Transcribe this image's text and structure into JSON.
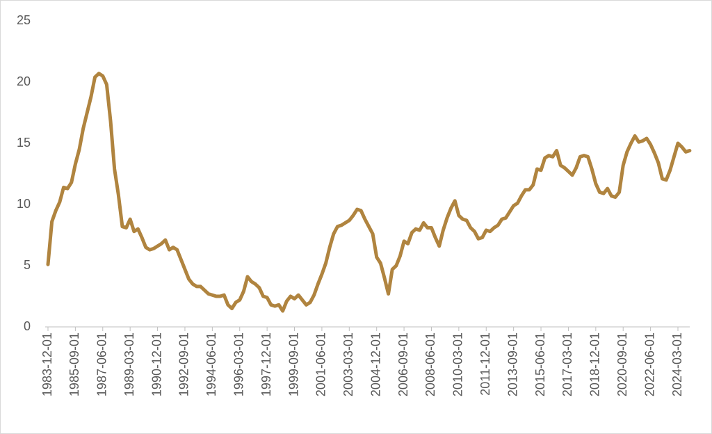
{
  "chart_data": {
    "type": "line",
    "categories": [
      "1983-12-01",
      null,
      null,
      null,
      null,
      null,
      null,
      "1985-09-01",
      null,
      null,
      null,
      null,
      null,
      null,
      "1987-06-01",
      null,
      null,
      null,
      null,
      null,
      null,
      "1989-03-01",
      null,
      null,
      null,
      null,
      null,
      null,
      "1990-12-01",
      null,
      null,
      null,
      null,
      null,
      null,
      "1992-09-01",
      null,
      null,
      null,
      null,
      null,
      null,
      "1994-06-01",
      null,
      null,
      null,
      null,
      null,
      null,
      "1996-03-01",
      null,
      null,
      null,
      null,
      null,
      null,
      "1997-12-01",
      null,
      null,
      null,
      null,
      null,
      null,
      "1999-09-01",
      null,
      null,
      null,
      null,
      null,
      null,
      "2001-06-01",
      null,
      null,
      null,
      null,
      null,
      null,
      "2003-03-01",
      null,
      null,
      null,
      null,
      null,
      null,
      "2004-12-01",
      null,
      null,
      null,
      null,
      null,
      null,
      "2006-09-01",
      null,
      null,
      null,
      null,
      null,
      null,
      "2008-06-01",
      null,
      null,
      null,
      null,
      null,
      null,
      "2010-03-01",
      null,
      null,
      null,
      null,
      null,
      null,
      "2011-12-01",
      null,
      null,
      null,
      null,
      null,
      null,
      "2013-09-01",
      null,
      null,
      null,
      null,
      null,
      null,
      "2015-06-01",
      null,
      null,
      null,
      null,
      null,
      null,
      "2017-03-01",
      null,
      null,
      null,
      null,
      null,
      null,
      "2018-12-01",
      null,
      null,
      null,
      null,
      null,
      null,
      "2020-09-01",
      null,
      null,
      null,
      null,
      null,
      null,
      "2022-06-01",
      null,
      null,
      null,
      null,
      null,
      null,
      "2024-03-01",
      null,
      null,
      null
    ],
    "values": [
      5.1,
      8.6,
      9.5,
      10.2,
      11.4,
      11.3,
      11.8,
      13.3,
      14.5,
      16.2,
      17.5,
      18.8,
      20.4,
      20.7,
      20.5,
      19.8,
      16.8,
      12.9,
      10.8,
      8.2,
      8.1,
      8.8,
      7.8,
      8.0,
      7.3,
      6.5,
      6.3,
      6.4,
      6.6,
      6.8,
      7.1,
      6.3,
      6.5,
      6.3,
      5.5,
      4.7,
      3.9,
      3.5,
      3.3,
      3.3,
      3.0,
      2.7,
      2.6,
      2.5,
      2.5,
      2.6,
      1.8,
      1.5,
      2.0,
      2.2,
      2.9,
      4.1,
      3.7,
      3.5,
      3.2,
      2.5,
      2.4,
      1.8,
      1.7,
      1.8,
      1.3,
      2.1,
      2.5,
      2.3,
      2.6,
      2.2,
      1.8,
      2.0,
      2.6,
      3.5,
      4.3,
      5.2,
      6.5,
      7.6,
      8.2,
      8.3,
      8.5,
      8.7,
      9.1,
      9.6,
      9.5,
      8.8,
      8.2,
      7.6,
      5.7,
      5.2,
      4.0,
      2.7,
      4.7,
      5.0,
      5.8,
      7.0,
      6.8,
      7.7,
      8.0,
      7.9,
      8.5,
      8.1,
      8.1,
      7.3,
      6.6,
      7.9,
      8.9,
      9.7,
      10.3,
      9.1,
      8.8,
      8.7,
      8.1,
      7.8,
      7.2,
      7.3,
      7.9,
      7.8,
      8.1,
      8.3,
      8.8,
      8.9,
      9.4,
      9.9,
      10.1,
      10.7,
      11.2,
      11.2,
      11.6,
      12.9,
      12.8,
      13.8,
      14.0,
      13.9,
      14.4,
      13.2,
      13.0,
      12.7,
      12.4,
      13.0,
      13.9,
      14.0,
      13.9,
      12.9,
      11.7,
      11.0,
      10.9,
      11.3,
      10.7,
      10.6,
      11.0,
      13.2,
      14.3,
      15.0,
      15.6,
      15.1,
      15.2,
      15.4,
      14.9,
      14.2,
      13.4,
      12.1,
      12.0,
      12.8,
      13.9,
      15.0,
      14.7,
      14.3,
      14.4
    ],
    "color": "#b0843f",
    "ylim": [
      0,
      25
    ],
    "yticks": [
      0,
      5,
      10,
      15,
      20,
      25
    ],
    "grid": false
  }
}
